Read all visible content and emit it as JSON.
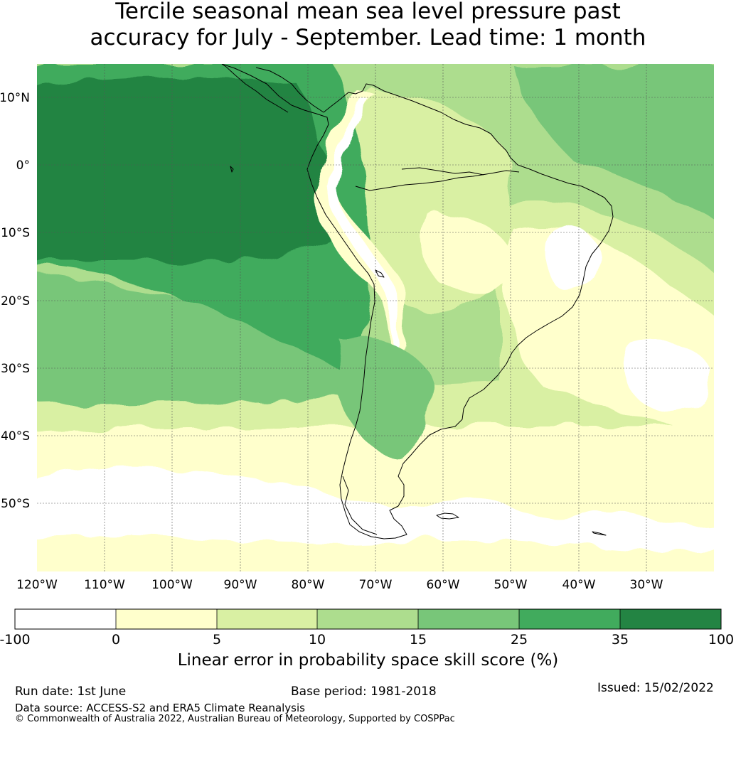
{
  "title": {
    "line1": "Tercile seasonal mean sea level pressure past",
    "line2": "accuracy for July - September. Lead time: 1 month"
  },
  "map": {
    "lat_labels": [
      "10°N",
      "0°",
      "10°S",
      "20°S",
      "30°S",
      "40°S",
      "50°S"
    ],
    "lon_labels": [
      "120°W",
      "110°W",
      "100°W",
      "90°W",
      "80°W",
      "70°W",
      "60°W",
      "50°W",
      "40°W",
      "30°W"
    ],
    "extent": {
      "lon_min": -121.5,
      "lon_max": -21.5,
      "lat_min": -60,
      "lat_max": 15
    },
    "gridlines": true
  },
  "colorbar": {
    "boundaries": [
      "-100",
      "0",
      "5",
      "10",
      "15",
      "25",
      "35",
      "100"
    ],
    "colors": [
      "#ffffff",
      "#ffffcc",
      "#d9f0a3",
      "#addd8e",
      "#78c679",
      "#41ab5d",
      "#238443"
    ],
    "label": "Linear error in probability space skill score (%)"
  },
  "footer": {
    "run_date": "Run date: 1st June",
    "base_period": "Base period: 1981-2018",
    "issued": "Issued: 15/02/2022",
    "data_source": "Data source: ACCESS-S2 and ERA5 Climate Reanalysis",
    "copyright": "© Commonwealth of Australia 2022, Australian Bureau of Meteorology, Supported by COSPPac"
  }
}
